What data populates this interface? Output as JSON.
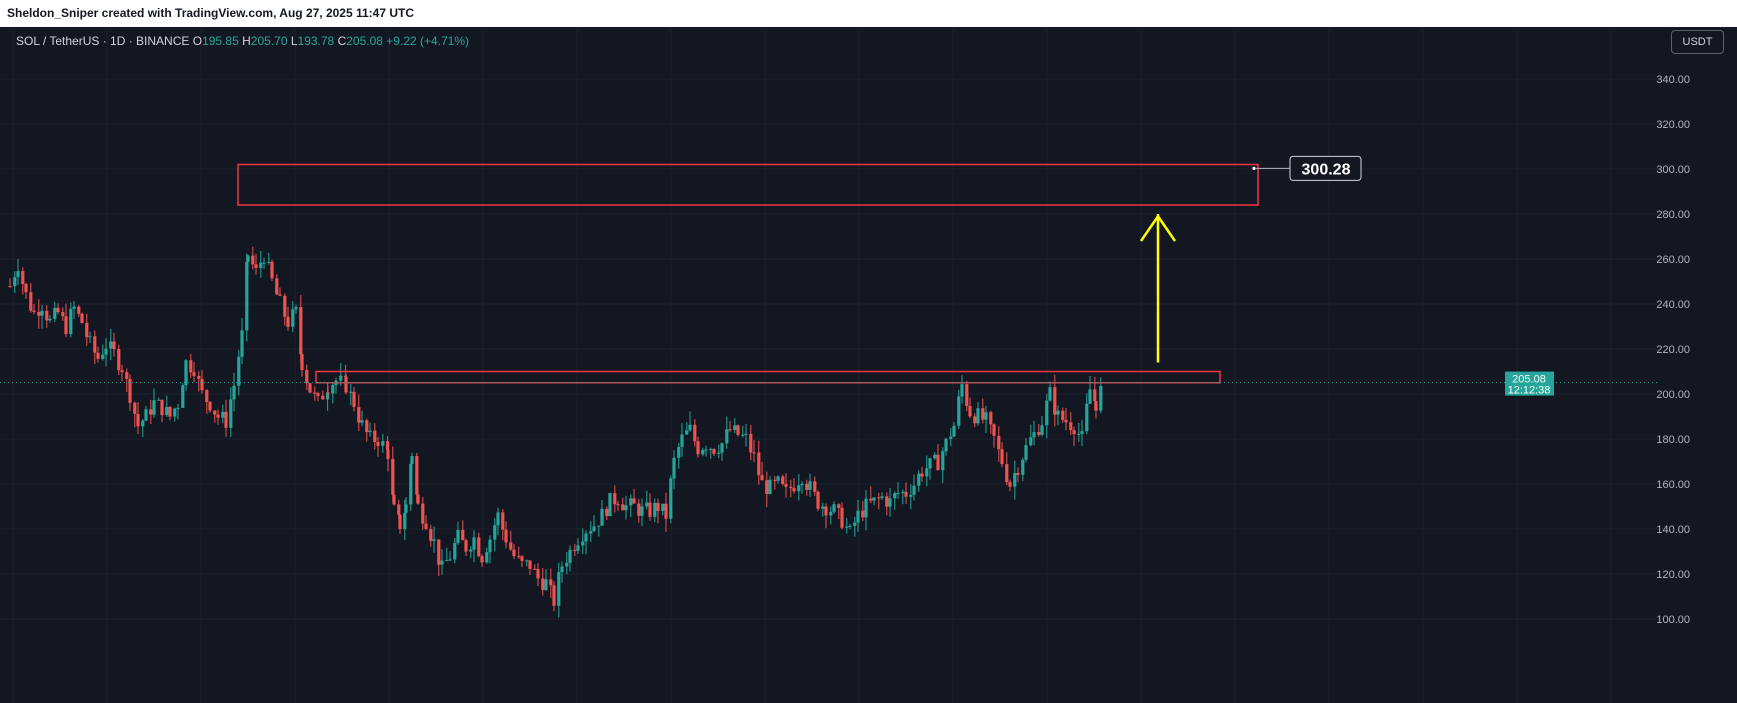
{
  "topbar": {
    "text": "Sheldon_Sniper created with TradingView.com, Aug 27, 2025 11:47 UTC"
  },
  "legend": {
    "symbol": "SOL / TetherUS · 1D · BINANCE",
    "o_label": "O",
    "o_value": "195.85",
    "h_label": "H",
    "h_value": "205.70",
    "l_label": "L",
    "l_value": "193.78",
    "c_label": "C",
    "c_value": "205.08",
    "change": "+9.22 (+4.71%)"
  },
  "unit_button": "USDT",
  "colors": {
    "background": "#131722",
    "grid": "#1e222d",
    "up": "#26a69a",
    "down": "#ef5350",
    "zone": "#f23645",
    "arrow": "#ffff00",
    "price_badge": "#26a69a"
  },
  "chart_data": {
    "type": "candlestick",
    "symbol": "SOL / TetherUS",
    "interval": "1D",
    "exchange": "BINANCE",
    "ylim": [
      100,
      340
    ],
    "y_ticks": [
      "340.00",
      "320.00",
      "300.00",
      "280.00",
      "260.00",
      "240.00",
      "220.00",
      "200.00",
      "180.00",
      "160.00",
      "140.00",
      "120.00",
      "100.00"
    ],
    "last_price": "205.08",
    "countdown": "12:12:38",
    "target_label": "300.28",
    "zones": [
      {
        "name": "target-zone",
        "top": 302,
        "bottom": 284
      },
      {
        "name": "resistance-zone",
        "top": 210,
        "bottom": 205
      }
    ],
    "close_path": [
      [
        0,
        248
      ],
      [
        8,
        258
      ],
      [
        16,
        244
      ],
      [
        24,
        236
      ],
      [
        32,
        240
      ],
      [
        40,
        232
      ],
      [
        48,
        236
      ],
      [
        56,
        230
      ],
      [
        64,
        238
      ],
      [
        72,
        232
      ],
      [
        80,
        222
      ],
      [
        88,
        216
      ],
      [
        96,
        222
      ],
      [
        104,
        218
      ],
      [
        112,
        212
      ],
      [
        120,
        200
      ],
      [
        128,
        186
      ],
      [
        136,
        190
      ],
      [
        144,
        196
      ],
      [
        152,
        194
      ],
      [
        160,
        190
      ],
      [
        168,
        196
      ],
      [
        176,
        214
      ],
      [
        184,
        212
      ],
      [
        192,
        200
      ],
      [
        200,
        196
      ],
      [
        208,
        190
      ],
      [
        216,
        188
      ],
      [
        224,
        204
      ],
      [
        232,
        226
      ],
      [
        238,
        262
      ],
      [
        246,
        254
      ],
      [
        254,
        262
      ],
      [
        262,
        250
      ],
      [
        270,
        240
      ],
      [
        278,
        232
      ],
      [
        286,
        236
      ],
      [
        292,
        214
      ],
      [
        300,
        202
      ],
      [
        308,
        196
      ],
      [
        318,
        204
      ],
      [
        326,
        206
      ],
      [
        336,
        204
      ],
      [
        344,
        196
      ],
      [
        352,
        186
      ],
      [
        360,
        180
      ],
      [
        368,
        180
      ],
      [
        378,
        174
      ],
      [
        384,
        148
      ],
      [
        390,
        142
      ],
      [
        396,
        150
      ],
      [
        402,
        174
      ],
      [
        408,
        150
      ],
      [
        416,
        144
      ],
      [
        424,
        134
      ],
      [
        432,
        122
      ],
      [
        440,
        128
      ],
      [
        448,
        136
      ],
      [
        456,
        132
      ],
      [
        464,
        136
      ],
      [
        472,
        128
      ],
      [
        480,
        136
      ],
      [
        488,
        146
      ],
      [
        496,
        136
      ],
      [
        504,
        128
      ],
      [
        512,
        124
      ],
      [
        520,
        124
      ],
      [
        528,
        118
      ],
      [
        536,
        116
      ],
      [
        544,
        108
      ],
      [
        552,
        124
      ],
      [
        560,
        130
      ],
      [
        568,
        136
      ],
      [
        576,
        140
      ],
      [
        584,
        142
      ],
      [
        592,
        146
      ],
      [
        600,
        152
      ],
      [
        608,
        154
      ],
      [
        616,
        150
      ],
      [
        624,
        150
      ],
      [
        632,
        148
      ],
      [
        640,
        148
      ],
      [
        648,
        150
      ],
      [
        656,
        146
      ],
      [
        664,
        170
      ],
      [
        672,
        180
      ],
      [
        680,
        184
      ],
      [
        688,
        176
      ],
      [
        696,
        178
      ],
      [
        704,
        176
      ],
      [
        712,
        178
      ],
      [
        720,
        184
      ],
      [
        728,
        182
      ],
      [
        736,
        180
      ],
      [
        744,
        172
      ],
      [
        752,
        160
      ],
      [
        760,
        158
      ],
      [
        768,
        160
      ],
      [
        776,
        156
      ],
      [
        784,
        160
      ],
      [
        792,
        164
      ],
      [
        800,
        158
      ],
      [
        808,
        152
      ],
      [
        816,
        150
      ],
      [
        824,
        148
      ],
      [
        832,
        144
      ],
      [
        840,
        138
      ],
      [
        848,
        146
      ],
      [
        856,
        150
      ],
      [
        864,
        152
      ],
      [
        872,
        154
      ],
      [
        880,
        152
      ],
      [
        888,
        156
      ],
      [
        896,
        156
      ],
      [
        904,
        160
      ],
      [
        912,
        166
      ],
      [
        920,
        168
      ],
      [
        928,
        170
      ],
      [
        936,
        178
      ],
      [
        944,
        186
      ],
      [
        952,
        204
      ],
      [
        960,
        192
      ],
      [
        968,
        190
      ],
      [
        976,
        188
      ],
      [
        984,
        180
      ],
      [
        992,
        170
      ],
      [
        1000,
        160
      ],
      [
        1008,
        168
      ],
      [
        1016,
        176
      ],
      [
        1024,
        182
      ],
      [
        1032,
        188
      ],
      [
        1040,
        200
      ],
      [
        1048,
        190
      ],
      [
        1056,
        188
      ],
      [
        1064,
        186
      ],
      [
        1072,
        180
      ],
      [
        1080,
        202
      ],
      [
        1086,
        196
      ],
      [
        1094,
        205
      ]
    ]
  }
}
